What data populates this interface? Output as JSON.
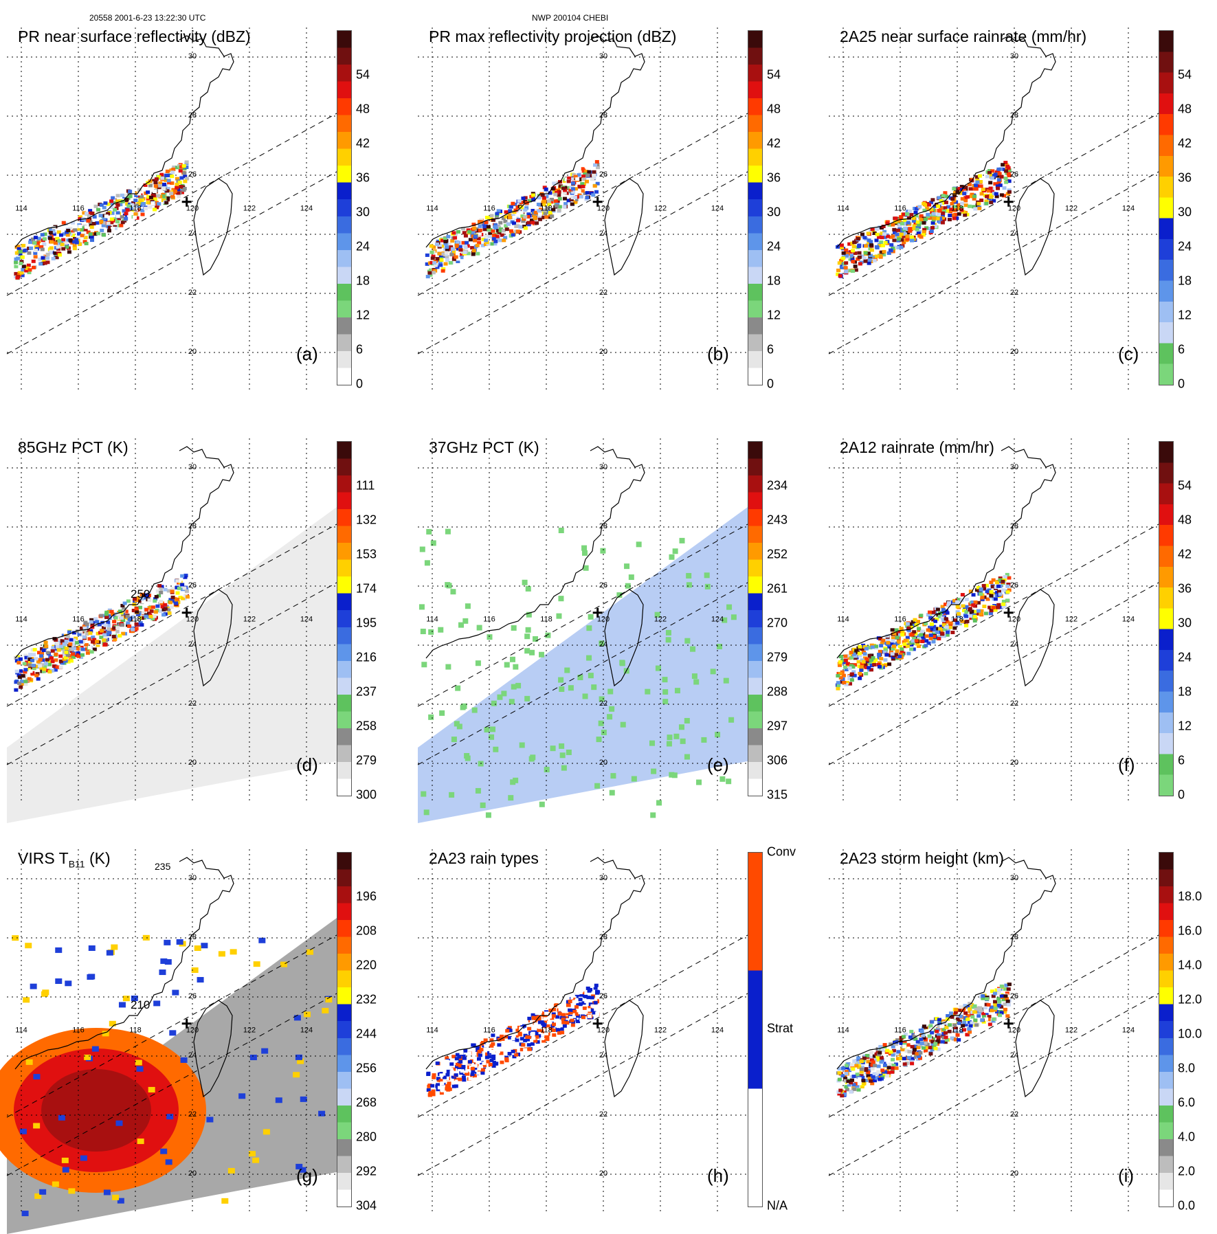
{
  "header": {
    "left": "20558 2001-6-23 13:22:30 UTC",
    "center": "NWP 200104 CHEBI"
  },
  "map": {
    "lon_labels": [
      "114",
      "116",
      "118",
      "120",
      "122",
      "124"
    ],
    "lat_labels": [
      "30",
      "28",
      "24",
      "22",
      "20"
    ],
    "lat_label_26": "26"
  },
  "panels": [
    {
      "id": "a",
      "label": "(a)",
      "title": "PR near surface reflectivity (dBZ)",
      "bg": "none",
      "contour_label": "",
      "ticks": [
        "0",
        "6",
        "12",
        "18",
        "24",
        "30",
        "36",
        "42",
        "48",
        "54"
      ],
      "colors": [
        "#ffffff",
        "#e6e6e6",
        "#bdbdbd",
        "#8a8a8a",
        "#7bd67b",
        "#5ec25e",
        "#c9d7f5",
        "#9ebff3",
        "#5e95ea",
        "#3a6ce0",
        "#1e3fd9",
        "#0a1fcc",
        "#ffff00",
        "#ffd000",
        "#ff9a00",
        "#ff6a00",
        "#ff3a00",
        "#e01010",
        "#a81010",
        "#701010",
        "#3a0a0a"
      ]
    },
    {
      "id": "b",
      "label": "(b)",
      "title": "PR max reflectivity projection (dBZ)",
      "bg": "none",
      "contour_label": "",
      "ticks": [
        "0",
        "6",
        "12",
        "18",
        "24",
        "30",
        "36",
        "42",
        "48",
        "54"
      ],
      "colors": [
        "#ffffff",
        "#e6e6e6",
        "#bdbdbd",
        "#8a8a8a",
        "#7bd67b",
        "#5ec25e",
        "#c9d7f5",
        "#9ebff3",
        "#5e95ea",
        "#3a6ce0",
        "#1e3fd9",
        "#0a1fcc",
        "#ffff00",
        "#ffd000",
        "#ff9a00",
        "#ff6a00",
        "#ff3a00",
        "#e01010",
        "#a81010",
        "#701010",
        "#3a0a0a"
      ]
    },
    {
      "id": "c",
      "label": "(c)",
      "title": "2A25 near surface rainrate (mm/hr)",
      "bg": "none",
      "contour_label": "",
      "ticks": [
        "0",
        "6",
        "12",
        "18",
        "24",
        "30",
        "36",
        "42",
        "48",
        "54"
      ],
      "colors": [
        "#7bd67b",
        "#5ec25e",
        "#c9d7f5",
        "#9ebff3",
        "#5e95ea",
        "#3a6ce0",
        "#1e3fd9",
        "#0a1fcc",
        "#ffff00",
        "#ffd000",
        "#ff9a00",
        "#ff6a00",
        "#ff3a00",
        "#e01010",
        "#a81010",
        "#701010",
        "#3a0a0a"
      ]
    },
    {
      "id": "d",
      "label": "(d)",
      "title": "85GHz PCT (K)",
      "bg": "gray",
      "contour_label": "250",
      "ticks": [
        "300",
        "279",
        "258",
        "237",
        "216",
        "195",
        "174",
        "153",
        "132",
        "111"
      ],
      "colors": [
        "#ffffff",
        "#e6e6e6",
        "#bdbdbd",
        "#8a8a8a",
        "#7bd67b",
        "#5ec25e",
        "#c9d7f5",
        "#9ebff3",
        "#5e95ea",
        "#3a6ce0",
        "#1e3fd9",
        "#0a1fcc",
        "#ffff00",
        "#ffd000",
        "#ff9a00",
        "#ff6a00",
        "#ff3a00",
        "#e01010",
        "#a81010",
        "#701010",
        "#3a0a0a"
      ]
    },
    {
      "id": "e",
      "label": "(e)",
      "title": "37GHz PCT (K)",
      "bg": "blue",
      "contour_label": "",
      "ticks": [
        "315",
        "306",
        "297",
        "288",
        "279",
        "270",
        "261",
        "252",
        "243",
        "234"
      ],
      "colors": [
        "#ffffff",
        "#e6e6e6",
        "#bdbdbd",
        "#8a8a8a",
        "#7bd67b",
        "#5ec25e",
        "#c9d7f5",
        "#9ebff3",
        "#5e95ea",
        "#3a6ce0",
        "#1e3fd9",
        "#0a1fcc",
        "#ffff00",
        "#ffd000",
        "#ff9a00",
        "#ff6a00",
        "#ff3a00",
        "#e01010",
        "#a81010",
        "#701010",
        "#3a0a0a"
      ]
    },
    {
      "id": "f",
      "label": "(f)",
      "title": "2A12 rainrate (mm/hr)",
      "bg": "none",
      "contour_label": "",
      "ticks": [
        "0",
        "6",
        "12",
        "18",
        "24",
        "30",
        "36",
        "42",
        "48",
        "54"
      ],
      "colors": [
        "#7bd67b",
        "#5ec25e",
        "#c9d7f5",
        "#9ebff3",
        "#5e95ea",
        "#3a6ce0",
        "#1e3fd9",
        "#0a1fcc",
        "#ffff00",
        "#ffd000",
        "#ff9a00",
        "#ff6a00",
        "#ff3a00",
        "#e01010",
        "#a81010",
        "#701010",
        "#3a0a0a"
      ]
    },
    {
      "id": "g",
      "label": "(g)",
      "title_main": "VIRS T",
      "title_sub": "B11",
      "title_tail": " (K)",
      "bg": "virs",
      "contour_label": "210",
      "contour_label_2": "235",
      "ticks": [
        "304",
        "292",
        "280",
        "268",
        "256",
        "244",
        "232",
        "220",
        "208",
        "196"
      ],
      "colors": [
        "#ffffff",
        "#e6e6e6",
        "#bdbdbd",
        "#8a8a8a",
        "#7bd67b",
        "#5ec25e",
        "#c9d7f5",
        "#9ebff3",
        "#5e95ea",
        "#3a6ce0",
        "#1e3fd9",
        "#0a1fcc",
        "#ffff00",
        "#ffd000",
        "#ff9a00",
        "#ff6a00",
        "#ff3a00",
        "#e01010",
        "#a81010",
        "#701010",
        "#3a0a0a"
      ]
    },
    {
      "id": "h",
      "label": "(h)",
      "title": "2A23 rain types",
      "bg": "none",
      "contour_label": "",
      "ticks": [
        "N/A",
        "Strat",
        "Conv"
      ],
      "colors": [
        "#ffffff",
        "#0a1fcc",
        "#ff4a00"
      ]
    },
    {
      "id": "i",
      "label": "(i)",
      "title": "2A23 storm height (km)",
      "bg": "none",
      "contour_label": "",
      "ticks": [
        "0.0",
        "2.0",
        "4.0",
        "6.0",
        "8.0",
        "10.0",
        "12.0",
        "14.0",
        "16.0",
        "18.0"
      ],
      "colors": [
        "#ffffff",
        "#e6e6e6",
        "#bdbdbd",
        "#8a8a8a",
        "#7bd67b",
        "#5ec25e",
        "#c9d7f5",
        "#9ebff3",
        "#5e95ea",
        "#3a6ce0",
        "#1e3fd9",
        "#0a1fcc",
        "#ffff00",
        "#ffd000",
        "#ff9a00",
        "#ff6a00",
        "#ff3a00",
        "#e01010",
        "#a81010",
        "#701010",
        "#3a0a0a"
      ]
    }
  ]
}
